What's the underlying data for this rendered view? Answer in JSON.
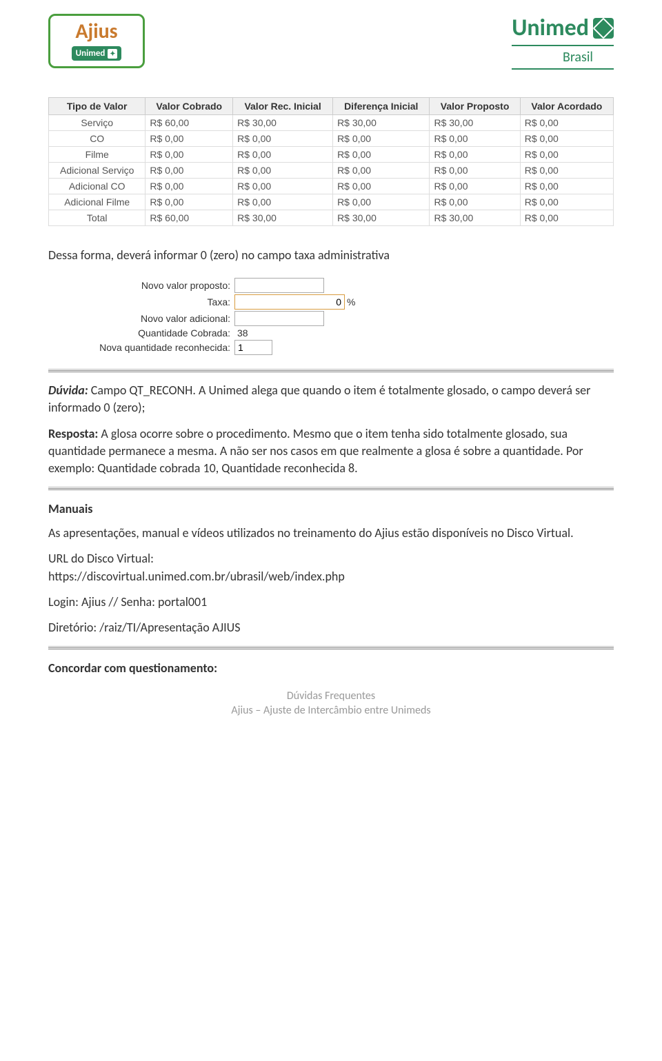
{
  "logos": {
    "ajius": "Ajius",
    "unimed_small": "Unimed",
    "unimed_big": "Unimed",
    "brasil": "Brasil"
  },
  "table": {
    "headers": [
      "Tipo de Valor",
      "Valor Cobrado",
      "Valor Rec. Inicial",
      "Diferença Inicial",
      "Valor Proposto",
      "Valor Acordado"
    ],
    "rows": [
      [
        "Serviço",
        "R$ 60,00",
        "R$ 30,00",
        "R$ 30,00",
        "R$ 30,00",
        "R$ 0,00"
      ],
      [
        "CO",
        "R$ 0,00",
        "R$ 0,00",
        "R$ 0,00",
        "R$ 0,00",
        "R$ 0,00"
      ],
      [
        "Filme",
        "R$ 0,00",
        "R$ 0,00",
        "R$ 0,00",
        "R$ 0,00",
        "R$ 0,00"
      ],
      [
        "Adicional Serviço",
        "R$ 0,00",
        "R$ 0,00",
        "R$ 0,00",
        "R$ 0,00",
        "R$ 0,00"
      ],
      [
        "Adicional CO",
        "R$ 0,00",
        "R$ 0,00",
        "R$ 0,00",
        "R$ 0,00",
        "R$ 0,00"
      ],
      [
        "Adicional Filme",
        "R$ 0,00",
        "R$ 0,00",
        "R$ 0,00",
        "R$ 0,00",
        "R$ 0,00"
      ],
      [
        "Total",
        "R$ 60,00",
        "R$ 30,00",
        "R$ 30,00",
        "R$ 30,00",
        "R$ 0,00"
      ]
    ]
  },
  "text": {
    "line1": "Dessa forma, deverá informar 0 (zero) no campo taxa administrativa",
    "duvida_label": "Dúvida:",
    "duvida_title": " Campo QT_RECONH.",
    "duvida_body": " A Unimed alega que quando o item é totalmente glosado, o campo deverá ser informado 0 (zero);",
    "resposta_label": "Resposta:",
    "resposta_body": " A glosa ocorre sobre o procedimento. Mesmo que o item tenha sido totalmente glosado, sua quantidade permanece a mesma. A não ser nos casos em que realmente a glosa é sobre a quantidade. Por exemplo: Quantidade cobrada 10, Quantidade reconhecida 8.",
    "manuais": "Manuais",
    "manuais_body": "As apresentações, manual e vídeos utilizados no treinamento do Ajius estão disponíveis no Disco Virtual.",
    "url_label": "URL do Disco Virtual:",
    "url": "https://discovirtual.unimed.com.br/ubrasil/web/index.php",
    "login": "Login: Ajius  // Senha: portal001",
    "diretorio": "Diretório: /raiz/TI/Apresentação AJIUS",
    "concordar": "Concordar com questionamento:"
  },
  "form": {
    "novo_valor_proposto": {
      "label": "Novo valor proposto:",
      "value": ""
    },
    "taxa": {
      "label": "Taxa:",
      "value": "0",
      "suffix": "%"
    },
    "novo_valor_adicional": {
      "label": "Novo valor adicional:",
      "value": ""
    },
    "quantidade_cobrada": {
      "label": "Quantidade Cobrada:",
      "value": "38"
    },
    "nova_quantidade": {
      "label": "Nova quantidade reconhecida:",
      "value": "1"
    }
  },
  "footer": {
    "line1": "Dúvidas Frequentes",
    "line2": "Ajius – Ajuste de Intercâmbio entre Unimeds"
  }
}
